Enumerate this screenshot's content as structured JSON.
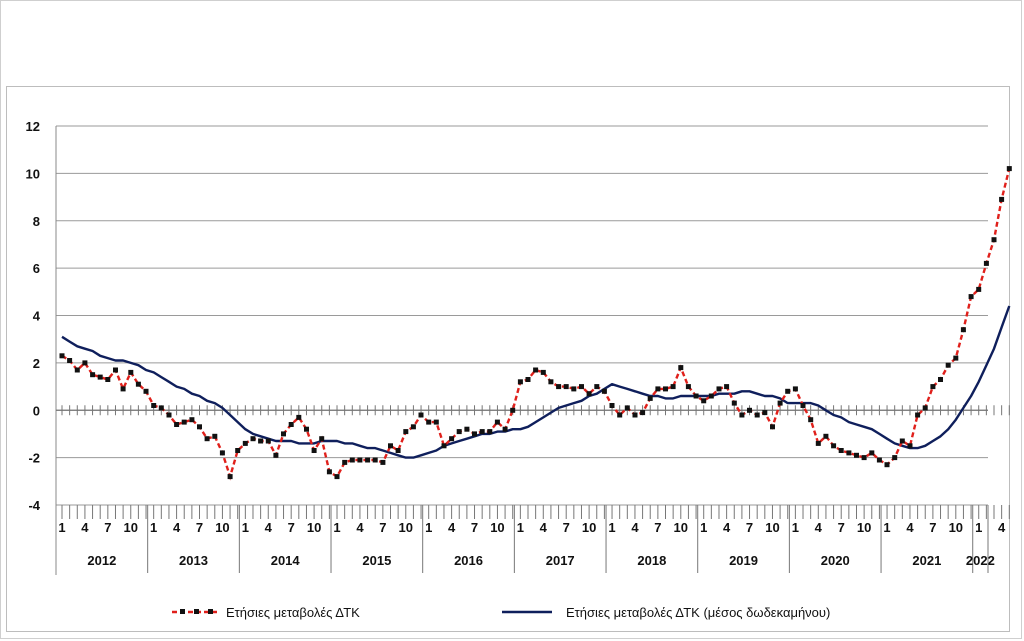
{
  "chart_data": {
    "type": "line",
    "title": "",
    "xlabel": "",
    "ylabel": "",
    "ylim": [
      -4,
      12
    ],
    "y_ticks": [
      "12",
      "10",
      "8",
      "6",
      "4",
      "2",
      "0",
      "-2",
      "-4"
    ],
    "x_month_ticks": [
      "1",
      "4",
      "7",
      "10"
    ],
    "last_year_ticks": [
      "1",
      "4"
    ],
    "years": [
      "2012",
      "2013",
      "2014",
      "2015",
      "2016",
      "2017",
      "2018",
      "2019",
      "2020",
      "2021",
      "2022"
    ],
    "grid": true,
    "legend_position": "bottom",
    "series": [
      {
        "name": "Ετήσιες μεταβολές ΔΤΚ",
        "color": "#e0201b",
        "style": "dashed-with-markers",
        "values": [
          2.3,
          2.1,
          1.7,
          2.0,
          1.5,
          1.4,
          1.3,
          1.7,
          0.9,
          1.6,
          1.1,
          0.8,
          0.2,
          0.1,
          -0.2,
          -0.6,
          -0.5,
          -0.4,
          -0.7,
          -1.2,
          -1.1,
          -1.8,
          -2.8,
          -1.7,
          -1.4,
          -1.2,
          -1.3,
          -1.3,
          -1.9,
          -1.0,
          -0.6,
          -0.3,
          -0.8,
          -1.7,
          -1.2,
          -2.6,
          -2.8,
          -2.2,
          -2.1,
          -2.1,
          -2.1,
          -2.1,
          -2.2,
          -1.5,
          -1.7,
          -0.9,
          -0.7,
          -0.2,
          -0.5,
          -0.5,
          -1.5,
          -1.2,
          -0.9,
          -0.8,
          -1.0,
          -0.9,
          -0.9,
          -0.5,
          -0.8,
          0.0,
          1.2,
          1.3,
          1.7,
          1.6,
          1.2,
          1.0,
          1.0,
          0.9,
          1.0,
          0.7,
          1.0,
          0.8,
          0.2,
          -0.2,
          0.1,
          -0.2,
          -0.1,
          0.5,
          0.9,
          0.9,
          1.0,
          1.8,
          1.0,
          0.6,
          0.4,
          0.6,
          0.9,
          1.0,
          0.3,
          -0.2,
          0.0,
          -0.2,
          -0.1,
          -0.7,
          0.3,
          0.8,
          0.9,
          0.2,
          -0.4,
          -1.4,
          -1.1,
          -1.5,
          -1.7,
          -1.8,
          -1.9,
          -2.0,
          -1.8,
          -2.1,
          -2.3,
          -2.0,
          -1.3,
          -1.5,
          -0.2,
          0.1,
          1.0,
          1.3,
          1.9,
          2.2,
          3.4,
          4.8,
          5.1,
          6.2,
          7.2,
          8.9,
          10.2
        ]
      },
      {
        "name": "Ετήσιες μεταβολές ΔΤΚ (μέσος δωδεκαμήνου)",
        "color": "#0f1f5c",
        "style": "solid",
        "values": [
          3.1,
          2.9,
          2.7,
          2.6,
          2.5,
          2.3,
          2.2,
          2.1,
          2.1,
          2.0,
          1.9,
          1.7,
          1.6,
          1.4,
          1.2,
          1.0,
          0.9,
          0.7,
          0.6,
          0.4,
          0.3,
          0.1,
          -0.2,
          -0.5,
          -0.8,
          -1.0,
          -1.1,
          -1.2,
          -1.3,
          -1.3,
          -1.3,
          -1.4,
          -1.4,
          -1.4,
          -1.3,
          -1.3,
          -1.3,
          -1.4,
          -1.4,
          -1.5,
          -1.6,
          -1.6,
          -1.7,
          -1.8,
          -1.9,
          -2.0,
          -2.0,
          -1.9,
          -1.8,
          -1.7,
          -1.5,
          -1.4,
          -1.3,
          -1.2,
          -1.1,
          -1.0,
          -1.0,
          -0.9,
          -0.9,
          -0.8,
          -0.8,
          -0.7,
          -0.5,
          -0.3,
          -0.1,
          0.1,
          0.2,
          0.3,
          0.4,
          0.6,
          0.7,
          0.9,
          1.1,
          1.0,
          0.9,
          0.8,
          0.7,
          0.6,
          0.6,
          0.5,
          0.5,
          0.6,
          0.6,
          0.6,
          0.6,
          0.6,
          0.7,
          0.7,
          0.7,
          0.8,
          0.8,
          0.7,
          0.6,
          0.6,
          0.5,
          0.3,
          0.3,
          0.3,
          0.3,
          0.2,
          0.0,
          -0.2,
          -0.3,
          -0.5,
          -0.6,
          -0.7,
          -0.8,
          -1.0,
          -1.2,
          -1.4,
          -1.5,
          -1.6,
          -1.6,
          -1.5,
          -1.3,
          -1.1,
          -0.8,
          -0.4,
          0.1,
          0.6,
          1.2,
          1.9,
          2.6,
          3.5,
          4.4
        ]
      }
    ]
  }
}
